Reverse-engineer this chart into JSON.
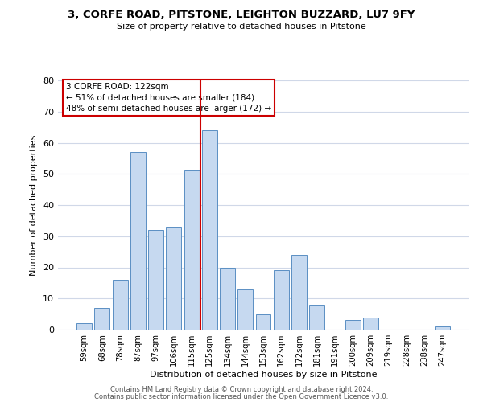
{
  "title_line1": "3, CORFE ROAD, PITSTONE, LEIGHTON BUZZARD, LU7 9FY",
  "title_line2": "Size of property relative to detached houses in Pitstone",
  "xlabel": "Distribution of detached houses by size in Pitstone",
  "ylabel": "Number of detached properties",
  "bar_labels": [
    "59sqm",
    "68sqm",
    "78sqm",
    "87sqm",
    "97sqm",
    "106sqm",
    "115sqm",
    "125sqm",
    "134sqm",
    "144sqm",
    "153sqm",
    "162sqm",
    "172sqm",
    "181sqm",
    "191sqm",
    "200sqm",
    "209sqm",
    "219sqm",
    "228sqm",
    "238sqm",
    "247sqm"
  ],
  "bar_values": [
    2,
    7,
    16,
    57,
    32,
    33,
    51,
    64,
    20,
    13,
    5,
    19,
    24,
    8,
    0,
    3,
    4,
    0,
    0,
    0,
    1
  ],
  "bar_color": "#c6d9f0",
  "bar_edge_color": "#5a8fc3",
  "vline_x": 7,
  "vline_color": "#cc0000",
  "annotation_title": "3 CORFE ROAD: 122sqm",
  "annotation_line1": "← 51% of detached houses are smaller (184)",
  "annotation_line2": "48% of semi-detached houses are larger (172) →",
  "annotation_box_color": "#ffffff",
  "annotation_box_edge": "#cc0000",
  "ylim": [
    0,
    80
  ],
  "yticks": [
    0,
    10,
    20,
    30,
    40,
    50,
    60,
    70,
    80
  ],
  "footer_line1": "Contains HM Land Registry data © Crown copyright and database right 2024.",
  "footer_line2": "Contains public sector information licensed under the Open Government Licence v3.0.",
  "bg_color": "#ffffff",
  "grid_color": "#d0d8e8"
}
